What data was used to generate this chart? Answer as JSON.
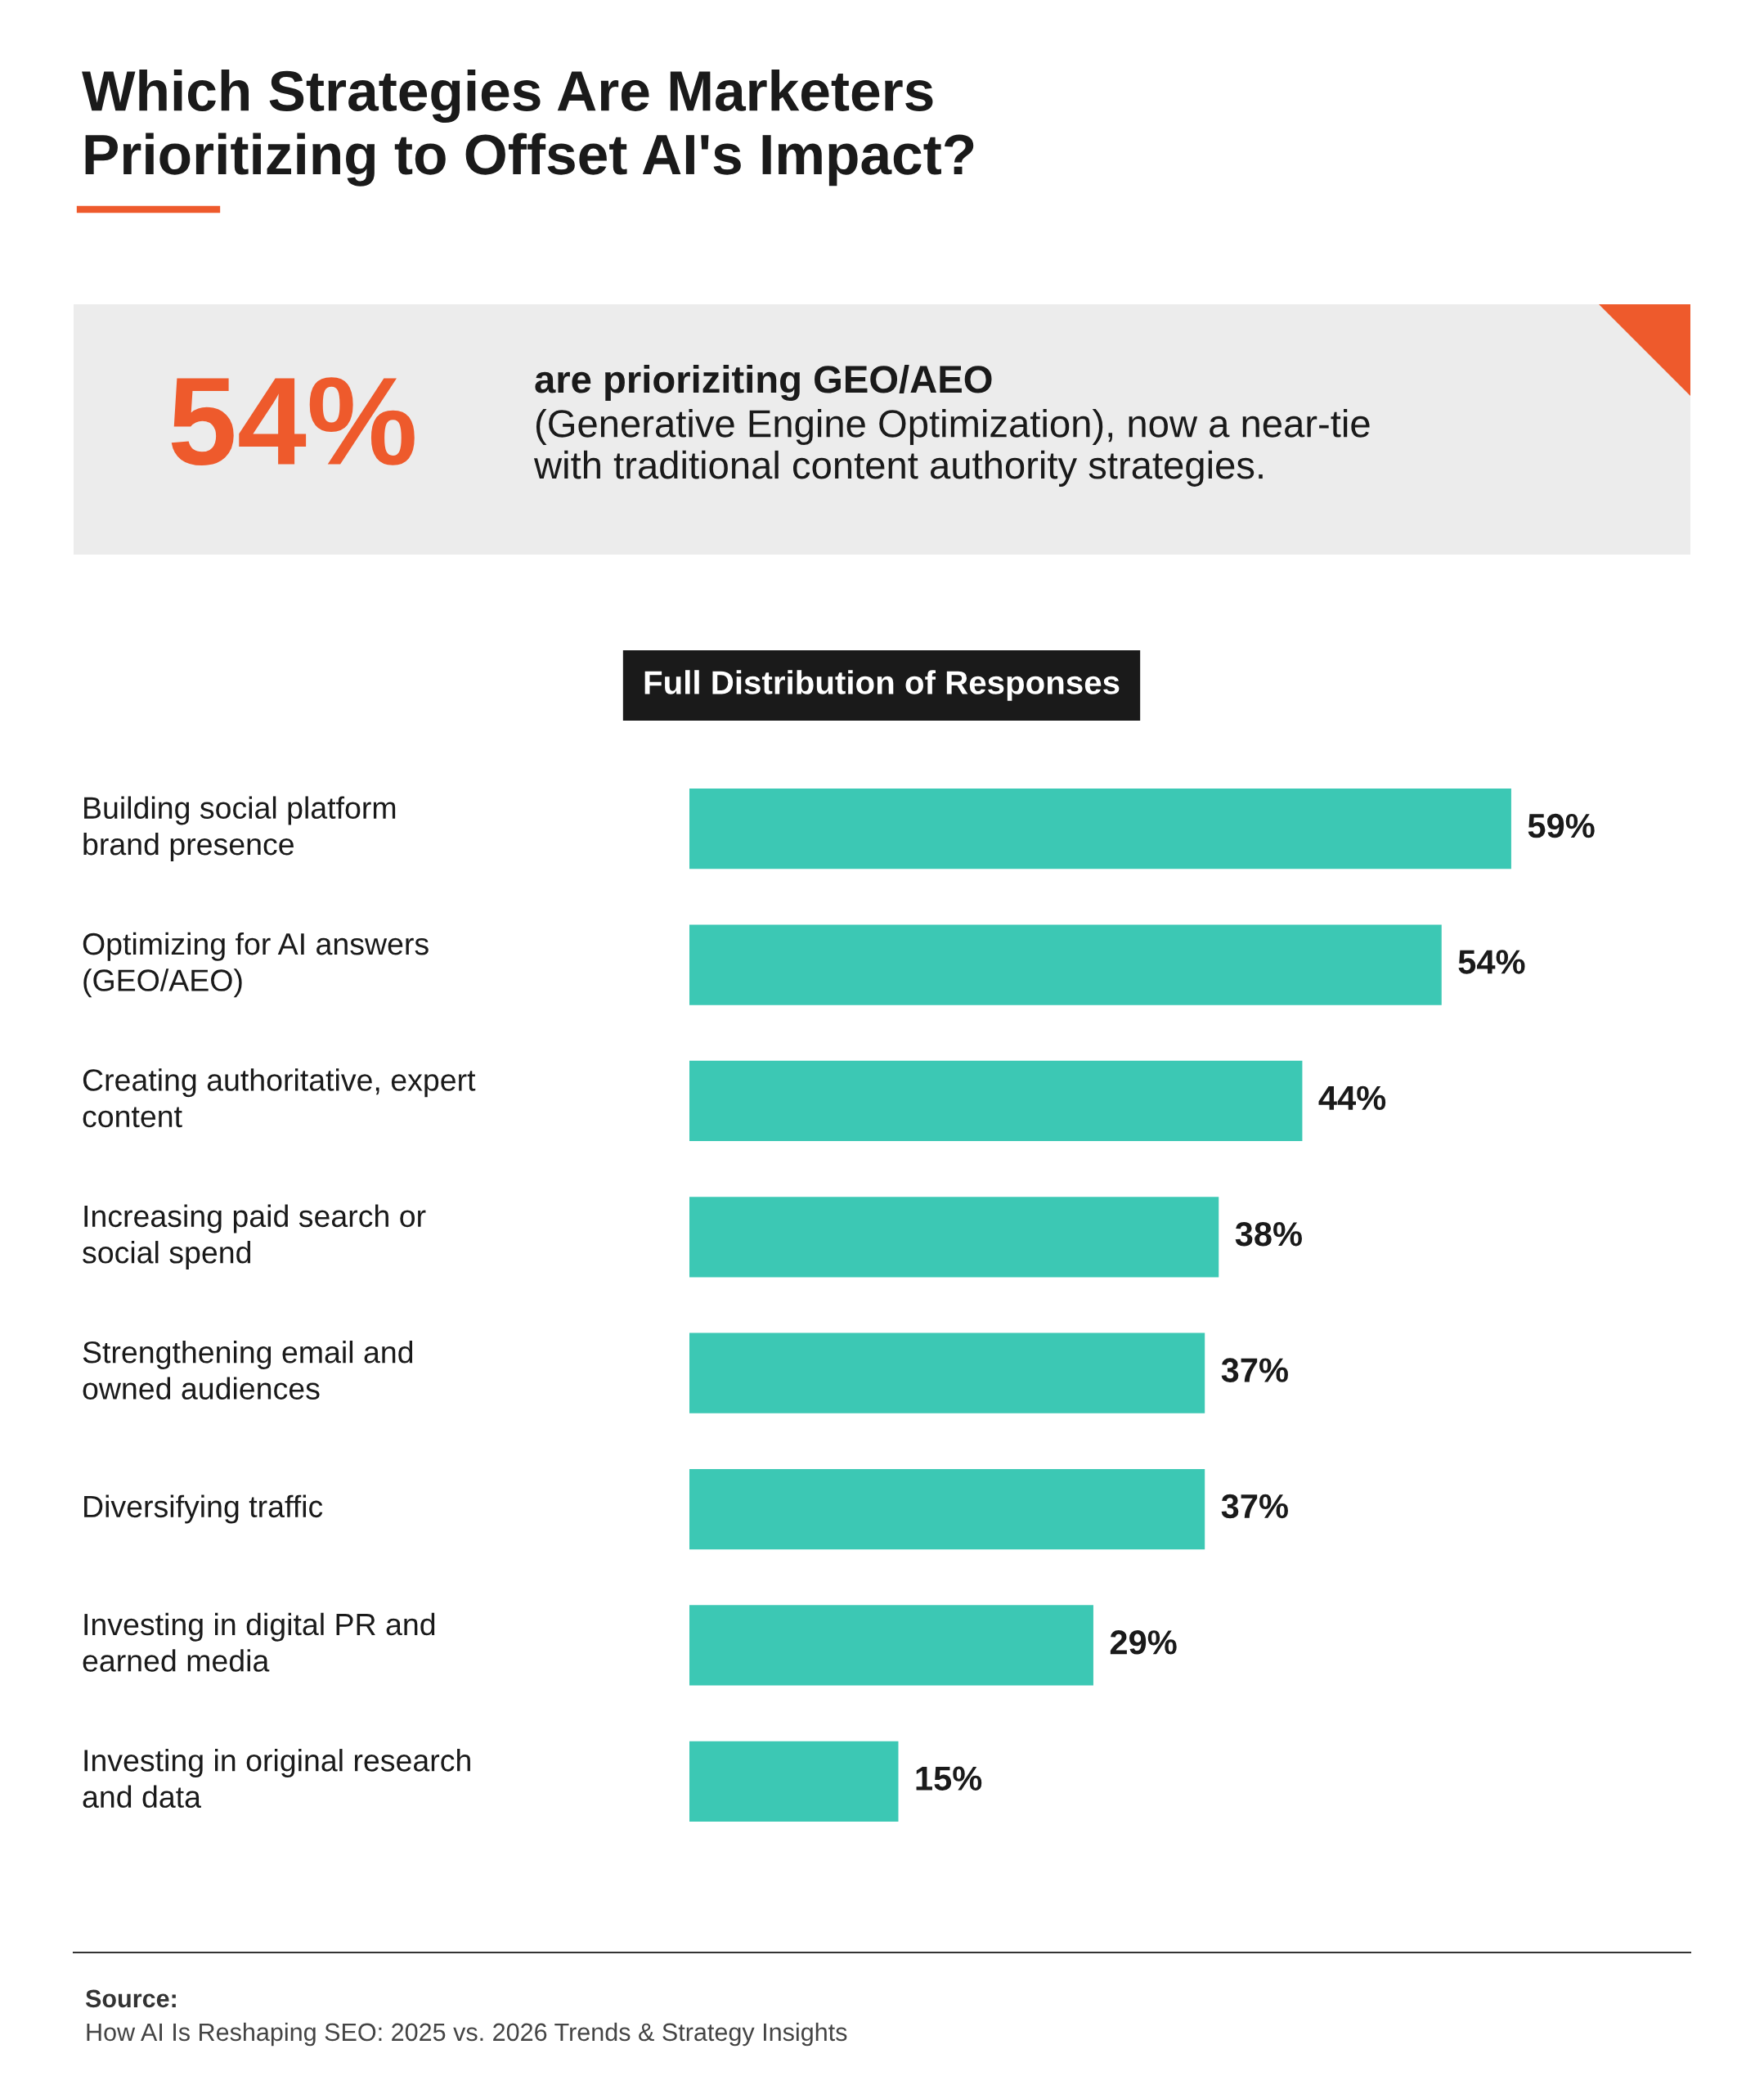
{
  "chart_data": {
    "type": "bar",
    "orientation": "horizontal",
    "title": "Which Strategies Are Marketers\nPrioritizing to Offset AI's Impact?",
    "subtitle": "Full Distribution of Responses",
    "categories": [
      "Building social platform\nbrand presence",
      "Optimizing for AI answers\n(GEO/AEO)",
      "Creating authoritative, expert\ncontent",
      "Increasing paid search or\nsocial spend",
      "Strengthening email and\nowned audiences",
      "Diversifying traffic",
      "Investing in digital PR and\nearned media",
      "Investing in original research\nand data"
    ],
    "values": [
      59,
      54,
      44,
      38,
      37,
      37,
      29,
      15
    ],
    "color": "#3cc8b4",
    "data_labels": true,
    "value_labels": [
      "59%",
      "54%",
      "44%",
      "38%",
      "37%",
      "37%",
      "29%",
      "15%"
    ],
    "annotations": [
      "54%",
      "are prioriziting GEO/AEO",
      "(Generative Engine Optimization), now a near-tie\nwith traditional content authority strategies.",
      "Source:",
      "How AI Is Reshaping SEO: 2025 vs. 2026 Trends & Strategy Insights"
    ]
  }
}
